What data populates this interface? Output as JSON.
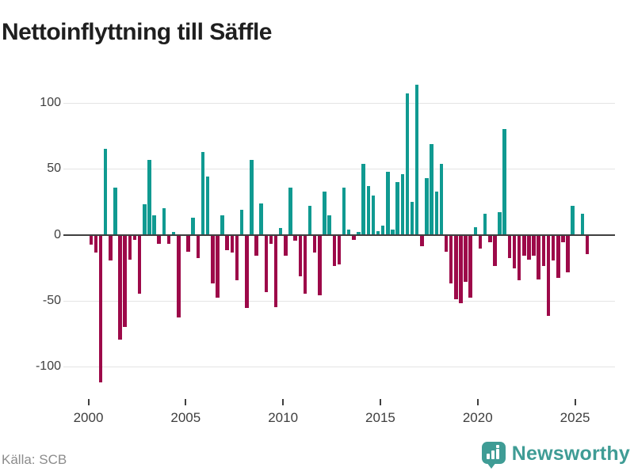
{
  "title": "Nettoinflyttning till Säffle",
  "footer": {
    "source": "Källa: SCB",
    "brand": "Newsworthy"
  },
  "colors": {
    "positive": "#109a91",
    "negative": "#9d0949",
    "grid": "#e4e4e4",
    "zero_axis": "#3f3f3f",
    "axis_text": "#3e3e3e",
    "muted_text": "#8c8c8c",
    "brand_teal": "#3f9c95",
    "title_text": "#1f1f1f"
  },
  "chart_data": {
    "type": "bar",
    "title": "Nettoinflyttning till Säffle",
    "xlabel": "",
    "ylabel": "",
    "frequency": "quarterly",
    "start": "2000Q1",
    "end": "2025Q3",
    "grid": true,
    "legend": false,
    "ylim": [
      -120,
      125
    ],
    "y_ticks": [
      100,
      50,
      0,
      -50,
      -100
    ],
    "y_tick_labels": [
      "100",
      "50",
      "0",
      "-50",
      "-100"
    ],
    "x_tick_years": [
      2000,
      2005,
      2010,
      2015,
      2020,
      2025
    ],
    "x_tick_labels": [
      "2000",
      "2005",
      "2010",
      "2015",
      "2020",
      "2025"
    ],
    "values": [
      -7,
      -13,
      -111,
      65,
      -19,
      36,
      -79,
      -69,
      -18,
      -3,
      -44,
      23,
      57,
      15,
      -6,
      20,
      -6,
      2,
      -62,
      0,
      -12,
      13,
      -17,
      63,
      44,
      -36,
      -47,
      15,
      -11,
      -13,
      -34,
      19,
      -55,
      57,
      -15,
      24,
      -43,
      -6,
      -54,
      5,
      -15,
      36,
      -4,
      -31,
      -44,
      22,
      -13,
      -45,
      33,
      15,
      -23,
      -22,
      36,
      4,
      -3,
      2,
      54,
      37,
      30,
      3,
      7,
      48,
      4,
      40,
      46,
      107,
      25,
      114,
      -8,
      43,
      69,
      33,
      54,
      -12,
      -36,
      -48,
      -51,
      -35,
      -47,
      6,
      -10,
      16,
      -5,
      -23,
      17,
      80,
      -17,
      -25,
      -34,
      -15,
      -18,
      -15,
      -33,
      -23,
      -61,
      -19,
      -32,
      -5,
      -28,
      22,
      0,
      16,
      -14
    ],
    "source": "SCB"
  }
}
